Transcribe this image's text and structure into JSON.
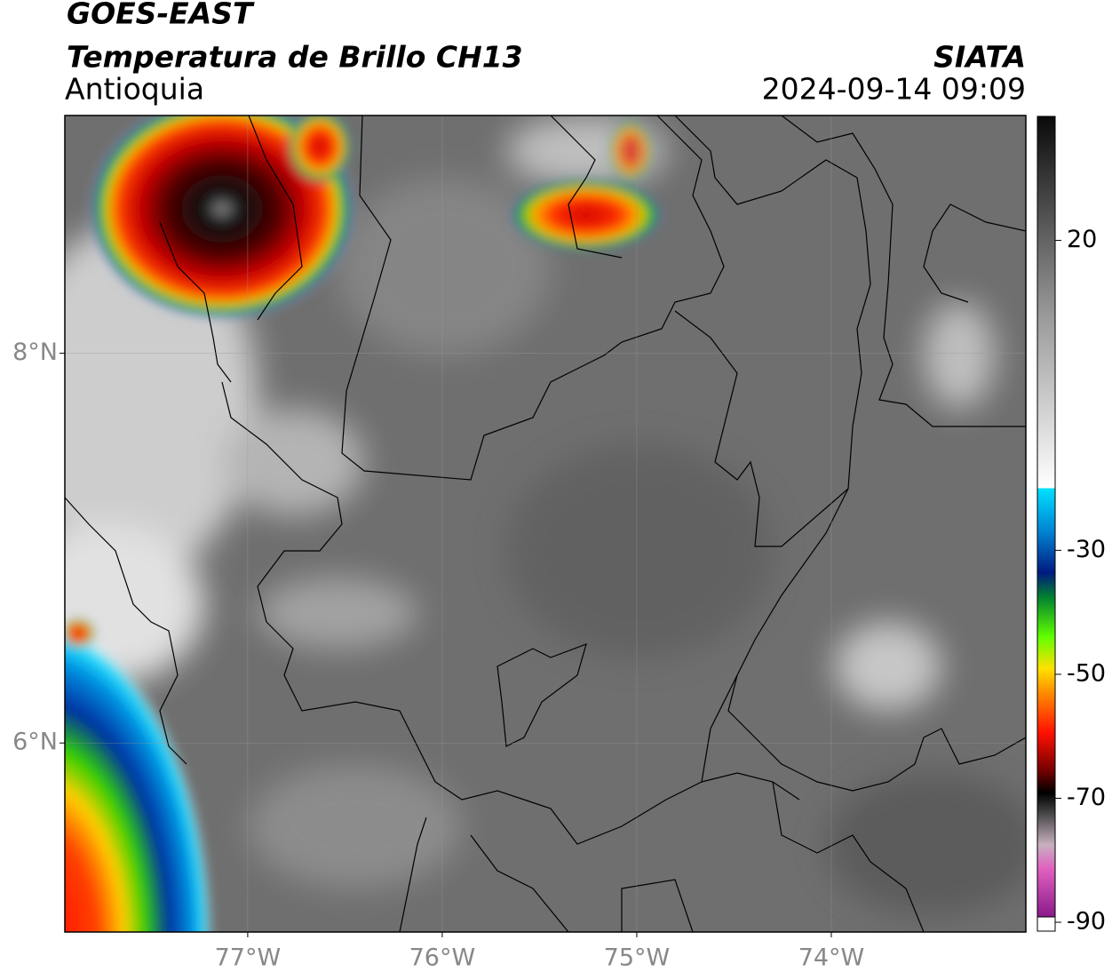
{
  "header": {
    "title": "GOES-EAST",
    "subtitle": "Temperatura de Brillo CH13",
    "region": "Antioquia",
    "source": "SIATA",
    "datetime": "2024-09-14 09:09"
  },
  "map": {
    "xlim": [
      -77.94,
      -73.0
    ],
    "ylim": [
      5.03,
      9.22
    ],
    "xticks": [
      {
        "value": -77,
        "label": "77°W"
      },
      {
        "value": -76,
        "label": "76°W"
      },
      {
        "value": -75,
        "label": "75°W"
      },
      {
        "value": -74,
        "label": "74°W"
      }
    ],
    "yticks": [
      {
        "value": 8,
        "label": "8°N"
      },
      {
        "value": 6,
        "label": "6°N"
      }
    ],
    "grid": true
  },
  "colorbar": {
    "lim": [
      -90,
      40
    ],
    "ticks": [
      20,
      -30,
      -50,
      -70,
      -90
    ]
  }
}
